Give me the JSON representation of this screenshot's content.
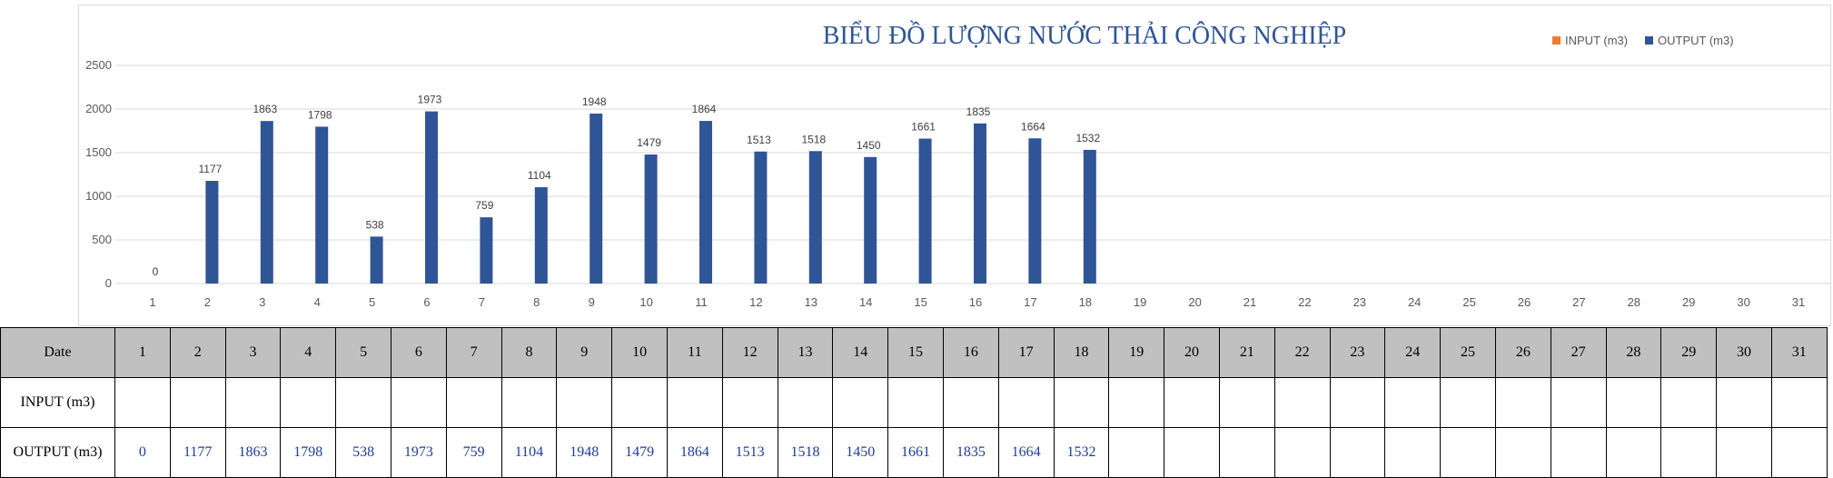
{
  "colors": {
    "input": "#ed7d31",
    "output": "#2f5597",
    "grid": "#d9d9d9",
    "header_bg": "#c0c0c0"
  },
  "chart_data": {
    "type": "bar",
    "title": "BIỂU ĐỒ LƯỢNG NƯỚC THẢI CÔNG NGHIỆP",
    "categories": [
      "1",
      "2",
      "3",
      "4",
      "5",
      "6",
      "7",
      "8",
      "9",
      "10",
      "11",
      "12",
      "13",
      "14",
      "15",
      "16",
      "17",
      "18",
      "19",
      "20",
      "21",
      "22",
      "23",
      "24",
      "25",
      "26",
      "27",
      "28",
      "29",
      "30",
      "31"
    ],
    "series": [
      {
        "name": "INPUT (m3)",
        "values": [
          null,
          null,
          null,
          null,
          null,
          null,
          null,
          null,
          null,
          null,
          null,
          null,
          null,
          null,
          null,
          null,
          null,
          null,
          null,
          null,
          null,
          null,
          null,
          null,
          null,
          null,
          null,
          null,
          null,
          null,
          null
        ]
      },
      {
        "name": "OUTPUT (m3)",
        "values": [
          0,
          1177,
          1863,
          1798,
          538,
          1973,
          759,
          1104,
          1948,
          1479,
          1864,
          1513,
          1518,
          1450,
          1661,
          1835,
          1664,
          1532,
          null,
          null,
          null,
          null,
          null,
          null,
          null,
          null,
          null,
          null,
          null,
          null,
          null
        ]
      }
    ],
    "yticks": [
      0,
      500,
      1000,
      1500,
      2000,
      2500
    ],
    "ylim": [
      0,
      2500
    ],
    "grid": true,
    "legend_position": "top-right"
  },
  "table": {
    "header_label": "Date",
    "input_label": "INPUT (m3)",
    "output_label": "OUTPUT (m3)"
  }
}
